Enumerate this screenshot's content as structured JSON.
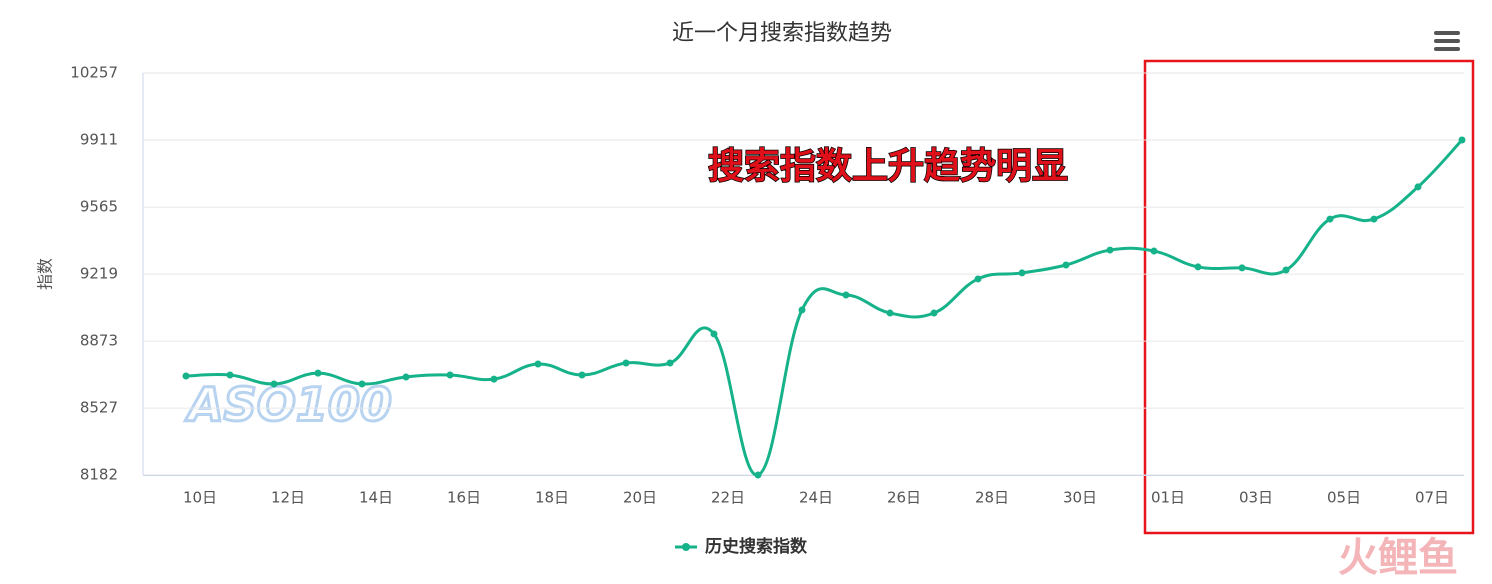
{
  "chart_data": {
    "type": "line",
    "title": "近一个月搜索指数趋势",
    "y_label": "指数",
    "categories": [
      "10日",
      null,
      "12日",
      null,
      "14日",
      null,
      "16日",
      null,
      "18日",
      null,
      "20日",
      null,
      "22日",
      null,
      "24日",
      null,
      "26日",
      null,
      "28日",
      null,
      "30日",
      null,
      "01日",
      null,
      "03日",
      null,
      "05日",
      null,
      "07日",
      null
    ],
    "series": [
      {
        "name": "历史搜索指数",
        "color": "#16b28a",
        "values": [
          8693,
          8698,
          8652,
          8708,
          8652,
          8688,
          8698,
          8677,
          8755,
          8698,
          8760,
          8760,
          8910,
          8182,
          9034,
          9111,
          9018,
          9018,
          9194,
          9225,
          9266,
          9343,
          9338,
          9256,
          9251,
          9240,
          9503,
          9503,
          9669,
          9911
        ]
      }
    ],
    "ylim": [
      8182,
      10257
    ],
    "yticks": [
      8182,
      8527,
      8873,
      9219,
      9565,
      9911,
      10257
    ],
    "grid": true,
    "legend": "bottom",
    "annotation": "搜索指数上升趋势明显",
    "watermark": "ASO100",
    "logo": "火鲤鱼"
  }
}
